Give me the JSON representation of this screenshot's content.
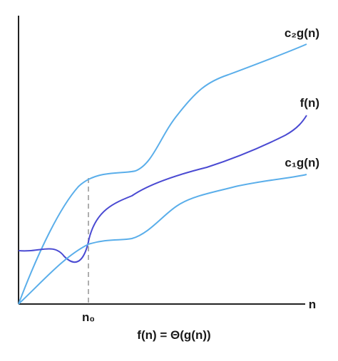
{
  "chart_data": {
    "type": "line",
    "title": "",
    "xlabel": "n",
    "ylabel": "",
    "caption": "f(n) = Θ(g(n))",
    "x_tick_labels": [
      "n₀"
    ],
    "grid": false,
    "series": [
      {
        "name": "c₂g(n)",
        "color": "#5aaeea"
      },
      {
        "name": "f(n)",
        "color": "#4a4ad2"
      },
      {
        "name": "c₁g(n)",
        "color": "#5aaeea"
      }
    ],
    "colors": {
      "axis": "#222222",
      "dashed": "#9a9a9a"
    }
  }
}
